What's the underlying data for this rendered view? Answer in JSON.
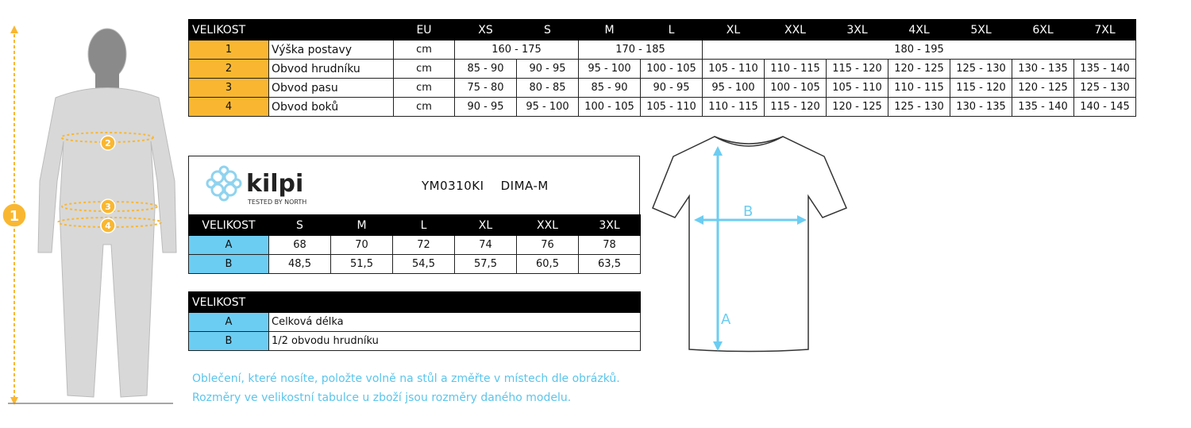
{
  "colors": {
    "accent_orange": "#f9b731",
    "accent_blue": "#6ccdf2",
    "note_text": "#5bc5eb"
  },
  "body_table": {
    "header": [
      "VELIKOST",
      "",
      "EU",
      "XS",
      "S",
      "M",
      "L",
      "XL",
      "XXL",
      "3XL",
      "4XL",
      "5XL",
      "6XL",
      "7XL"
    ],
    "height_row": {
      "num": "1",
      "label": "Výška postavy",
      "unit": "cm",
      "groups": [
        "160 - 175",
        "170 - 185",
        "180 - 195"
      ]
    },
    "rows": [
      {
        "num": "2",
        "label": "Obvod hrudníku",
        "unit": "cm",
        "values": [
          "85 - 90",
          "90 - 95",
          "95 - 100",
          "100 - 105",
          "105 - 110",
          "110 - 115",
          "115 - 120",
          "120 - 125",
          "125 - 130",
          "130 - 135",
          "135 - 140"
        ]
      },
      {
        "num": "3",
        "label": "Obvod pasu",
        "unit": "cm",
        "values": [
          "75 - 80",
          "80 - 85",
          "85 - 90",
          "90 - 95",
          "95 - 100",
          "100 - 105",
          "105 - 110",
          "110 - 115",
          "115 - 120",
          "120 - 125",
          "125 - 130"
        ]
      },
      {
        "num": "4",
        "label": "Obvod boků",
        "unit": "cm",
        "values": [
          "90 - 95",
          "95 - 100",
          "100 - 105",
          "105 - 110",
          "110 - 115",
          "115 - 120",
          "120 - 125",
          "125 - 130",
          "130 - 135",
          "135 - 140",
          "140 - 145"
        ]
      }
    ]
  },
  "brand": {
    "logo": "kilpi",
    "tagline": "Tested by North"
  },
  "product": {
    "code": "YM0310KI",
    "name": "DIMA-M"
  },
  "garment_table": {
    "header": [
      "VELIKOST",
      "S",
      "M",
      "L",
      "XL",
      "XXL",
      "3XL"
    ],
    "rows": [
      {
        "key": "A",
        "values": [
          "68",
          "70",
          "72",
          "74",
          "76",
          "78"
        ]
      },
      {
        "key": "B",
        "values": [
          "48,5",
          "51,5",
          "54,5",
          "57,5",
          "60,5",
          "63,5"
        ]
      }
    ]
  },
  "legend_table": {
    "header": "VELIKOST",
    "rows": [
      {
        "key": "A",
        "label": "Celková délka"
      },
      {
        "key": "B",
        "label": "1/2 obvodu hrudníku"
      }
    ]
  },
  "figure_markers": [
    "1",
    "2",
    "3",
    "4"
  ],
  "shirt_markers": {
    "a": "A",
    "b": "B"
  },
  "notes": [
    "Oblečení, které nosíte, položte volně na stůl a změřte v místech dle obrázků.",
    "Rozměry ve velikostní tabulce u zboží jsou rozměry daného modelu."
  ]
}
